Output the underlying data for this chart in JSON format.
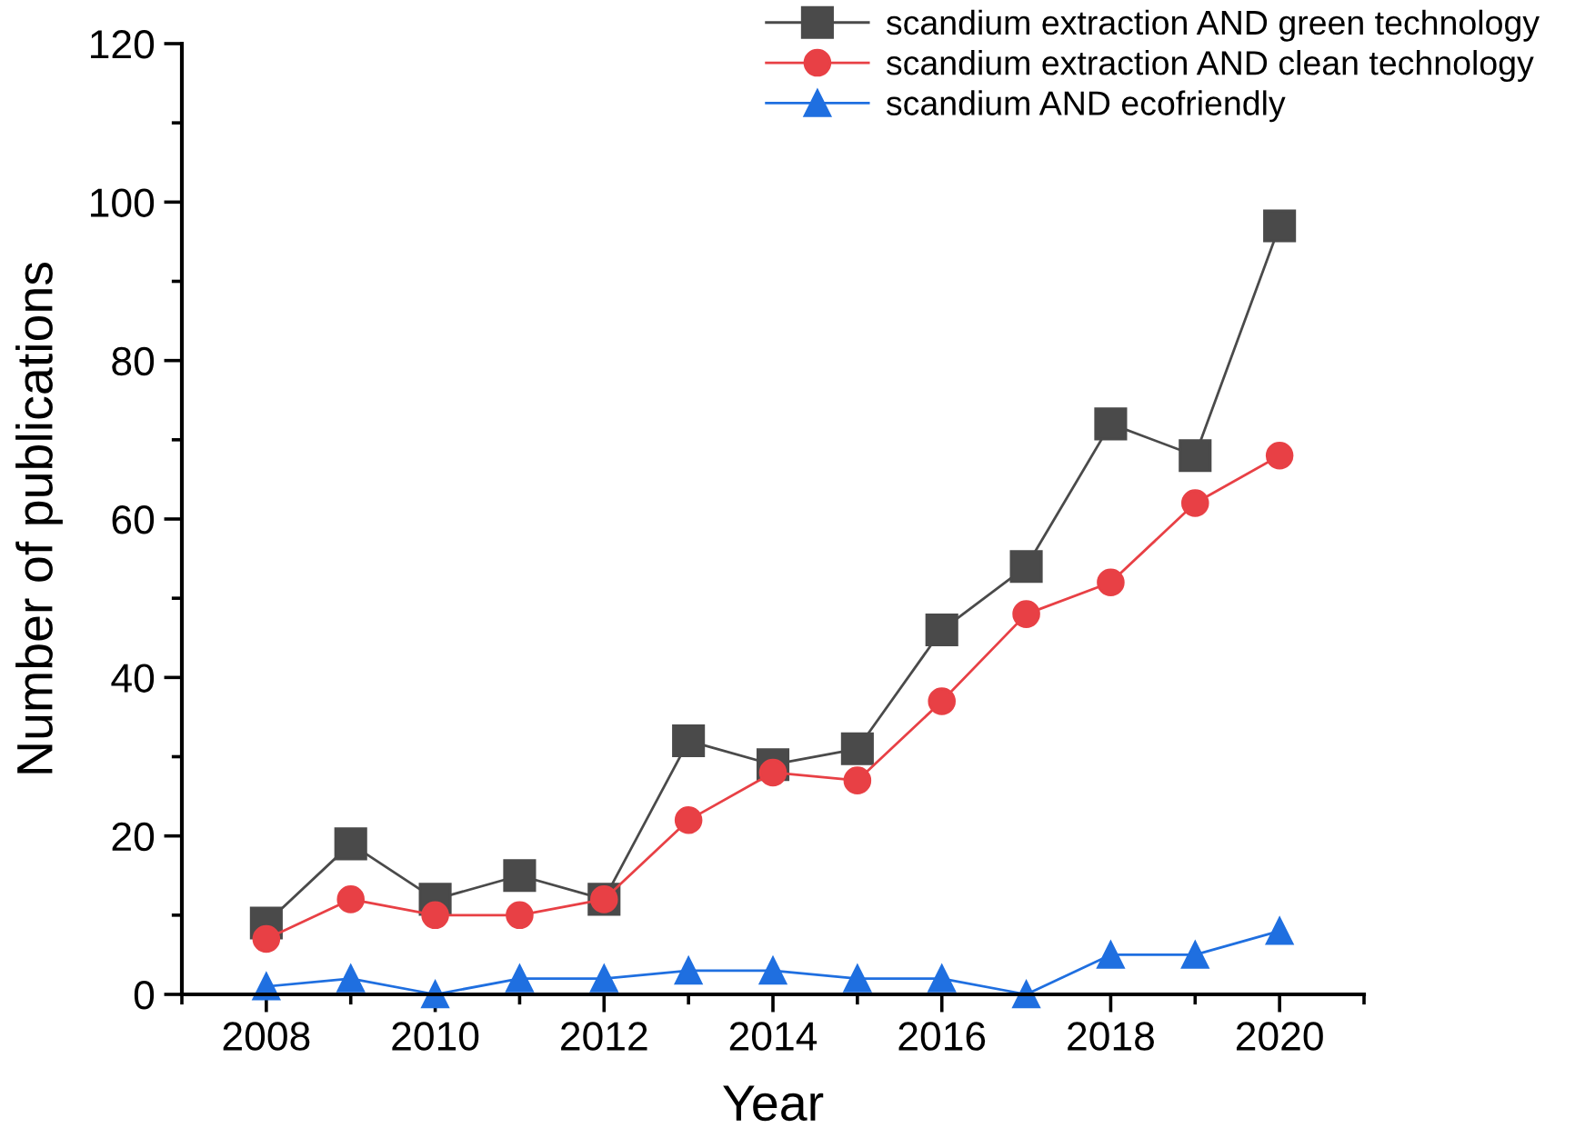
{
  "chart_data": {
    "type": "line",
    "xlabel": "Year",
    "ylabel": "Number of publications",
    "x": [
      2008,
      2009,
      2010,
      2011,
      2012,
      2013,
      2014,
      2015,
      2016,
      2017,
      2018,
      2019,
      2020
    ],
    "series": [
      {
        "name": "scandium extraction AND green technology",
        "color": "#4a4a4a",
        "marker": "square",
        "values": [
          9,
          19,
          12,
          15,
          12,
          32,
          29,
          31,
          46,
          54,
          72,
          68,
          97
        ]
      },
      {
        "name": "scandium extraction AND clean technology",
        "color": "#e84045",
        "marker": "circle",
        "values": [
          7,
          12,
          10,
          10,
          12,
          22,
          28,
          27,
          37,
          48,
          52,
          62,
          68
        ]
      },
      {
        "name": "scandium AND ecofriendly",
        "color": "#1f6fe0",
        "marker": "triangle",
        "values": [
          1,
          2,
          0,
          2,
          2,
          3,
          3,
          2,
          2,
          0,
          5,
          5,
          8
        ]
      }
    ],
    "xlim": [
      2007,
      2021
    ],
    "xticks": [
      {
        "value": 2007,
        "label": null
      },
      2008,
      {
        "value": 2009,
        "label": null
      },
      2010,
      {
        "value": 2011,
        "label": null
      },
      2012,
      {
        "value": 2013,
        "label": null
      },
      2014,
      {
        "value": 2015,
        "label": null
      },
      2016,
      {
        "value": 2017,
        "label": null
      },
      2018,
      {
        "value": 2019,
        "label": null
      },
      2020,
      {
        "value": 2021,
        "label": null
      }
    ],
    "ylim": [
      0,
      120
    ],
    "yticks": [
      0,
      {
        "value": 10,
        "label": null
      },
      20,
      {
        "value": 30,
        "label": null
      },
      40,
      {
        "value": 50,
        "label": null
      },
      60,
      {
        "value": 70,
        "label": null
      },
      80,
      {
        "value": 90,
        "label": null
      },
      100,
      {
        "value": 110,
        "label": null
      },
      120
    ],
    "grid": false,
    "legend": "top right",
    "line_style": "solid"
  }
}
